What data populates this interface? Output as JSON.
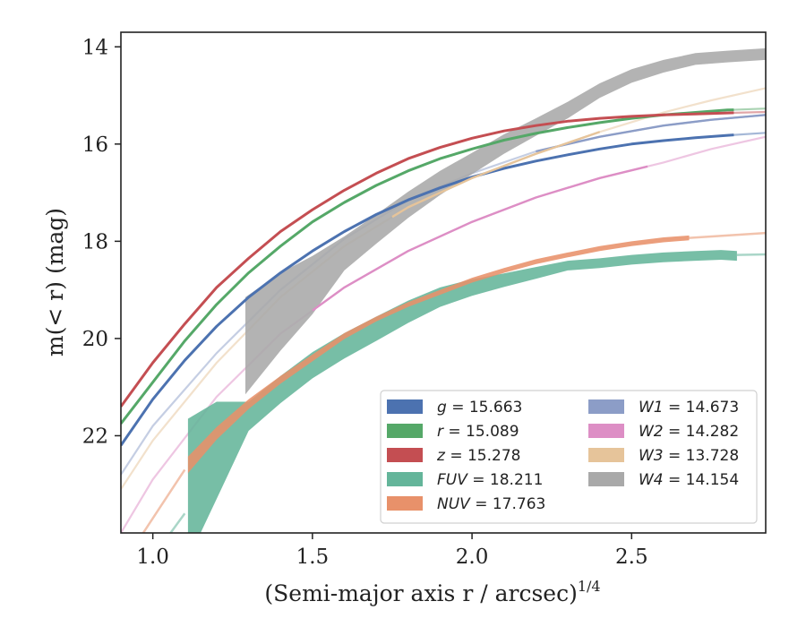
{
  "chart_data": {
    "type": "line",
    "xlabel": "(Semi-major axis r / arcsec)",
    "xlabel_exponent": "1/4",
    "ylabel": "m(< r) (mag)",
    "xlim": [
      0.9,
      2.92
    ],
    "ylim": [
      24.0,
      13.7
    ],
    "y_inverted": true,
    "x_ticks": [
      1.0,
      1.5,
      2.0,
      2.5
    ],
    "x_tick_labels": [
      "1.0",
      "1.5",
      "2.0",
      "2.5"
    ],
    "y_ticks": [
      14,
      16,
      18,
      20,
      22
    ],
    "y_tick_labels": [
      "14",
      "16",
      "18",
      "20",
      "22"
    ],
    "grid": false,
    "legend_placement": "lower-right",
    "series": [
      {
        "name": "g = 15.663",
        "band": "g",
        "value": "15.663",
        "color": "#4c72b0",
        "x": [
          0.9,
          1.0,
          1.1,
          1.2,
          1.3,
          1.4,
          1.5,
          1.6,
          1.7,
          1.8,
          1.9,
          2.0,
          2.1,
          2.2,
          2.3,
          2.4,
          2.5,
          2.6,
          2.7,
          2.8,
          2.92
        ],
        "y": [
          22.2,
          21.25,
          20.45,
          19.75,
          19.15,
          18.65,
          18.2,
          17.8,
          17.45,
          17.15,
          16.9,
          16.68,
          16.5,
          16.35,
          16.22,
          16.1,
          16.0,
          15.93,
          15.87,
          15.82,
          15.77
        ],
        "solid_until": 2.82,
        "width": 3
      },
      {
        "name": "r = 15.089",
        "band": "r",
        "value": "15.089",
        "color": "#55a868",
        "x": [
          0.9,
          1.0,
          1.1,
          1.2,
          1.3,
          1.4,
          1.5,
          1.6,
          1.7,
          1.8,
          1.9,
          2.0,
          2.1,
          2.2,
          2.3,
          2.4,
          2.5,
          2.6,
          2.7,
          2.8,
          2.92
        ],
        "y": [
          21.75,
          20.9,
          20.05,
          19.3,
          18.65,
          18.1,
          17.6,
          17.2,
          16.85,
          16.55,
          16.3,
          16.1,
          15.92,
          15.78,
          15.66,
          15.56,
          15.47,
          15.4,
          15.35,
          15.3,
          15.27
        ],
        "solid_until": 2.82,
        "width": 3
      },
      {
        "name": "z = 15.278",
        "band": "z",
        "value": "15.278",
        "color": "#c44e52",
        "x": [
          0.9,
          1.0,
          1.1,
          1.2,
          1.3,
          1.4,
          1.5,
          1.6,
          1.7,
          1.8,
          1.9,
          2.0,
          2.1,
          2.2,
          2.3,
          2.4,
          2.5,
          2.6,
          2.7,
          2.8,
          2.92
        ],
        "y": [
          21.4,
          20.5,
          19.7,
          18.95,
          18.35,
          17.8,
          17.35,
          16.95,
          16.6,
          16.3,
          16.07,
          15.88,
          15.73,
          15.62,
          15.53,
          15.47,
          15.43,
          15.4,
          15.38,
          15.36,
          15.34
        ],
        "solid_until": 2.82,
        "width": 3
      },
      {
        "name": "FUV = 18.211",
        "band": "FUV",
        "value": "18.211",
        "color": "#64b59a",
        "x": [
          1.11,
          1.2,
          1.3,
          1.4,
          1.5,
          1.6,
          1.7,
          1.8,
          1.9,
          2.0,
          2.1,
          2.2,
          2.3,
          2.4,
          2.5,
          2.6,
          2.7,
          2.78,
          2.83
        ],
        "y": [
          23.1,
          22.3,
          21.6,
          21.05,
          20.55,
          20.15,
          19.8,
          19.45,
          19.15,
          18.95,
          18.8,
          18.65,
          18.5,
          18.45,
          18.38,
          18.33,
          18.3,
          18.28,
          18.3
        ],
        "band_half": [
          1.45,
          1.0,
          0.3,
          0.28,
          0.27,
          0.26,
          0.25,
          0.23,
          0.2,
          0.17,
          0.14,
          0.12,
          0.1,
          0.1,
          0.1,
          0.1,
          0.1,
          0.1,
          0.1
        ],
        "ext_x": [
          0.9,
          1.0,
          1.1
        ],
        "ext_y": [
          25.3,
          24.5,
          23.6
        ],
        "tail_x": [
          2.83,
          2.92
        ],
        "tail_y": [
          18.28,
          18.27
        ]
      },
      {
        "name": "NUV = 17.763",
        "band": "NUV",
        "value": "17.763",
        "color": "#e8916a",
        "x": [
          1.11,
          1.2,
          1.3,
          1.4,
          1.5,
          1.6,
          1.7,
          1.8,
          1.9,
          2.0,
          2.1,
          2.2,
          2.3,
          2.4,
          2.5,
          2.6,
          2.68
        ],
        "y": [
          22.6,
          21.95,
          21.35,
          20.85,
          20.4,
          19.95,
          19.6,
          19.3,
          19.05,
          18.8,
          18.6,
          18.42,
          18.28,
          18.15,
          18.05,
          17.97,
          17.93
        ],
        "band_half": [
          0.17,
          0.13,
          0.1,
          0.08,
          0.07,
          0.06,
          0.05,
          0.05,
          0.05,
          0.05,
          0.05,
          0.05,
          0.05,
          0.05,
          0.05,
          0.05,
          0.05
        ],
        "ext_x": [
          0.9,
          1.0,
          1.1
        ],
        "ext_y": [
          24.7,
          23.7,
          22.7
        ],
        "tail_x": [
          2.68,
          2.8,
          2.92
        ],
        "tail_y": [
          17.93,
          17.88,
          17.83
        ]
      },
      {
        "name": "W1 = 14.673",
        "band": "W1",
        "value": "14.673",
        "color": "#8c9dc7",
        "x": [
          0.9,
          1.0,
          1.2,
          1.4,
          1.6,
          1.8,
          2.0,
          2.2,
          2.4,
          2.6,
          2.75,
          2.92
        ],
        "y": [
          22.8,
          21.8,
          20.3,
          19.0,
          17.95,
          17.15,
          16.6,
          16.15,
          15.85,
          15.62,
          15.5,
          15.4
        ],
        "solid_from": 2.2,
        "solid_until": 2.92
      },
      {
        "name": "W2 = 14.282",
        "band": "W2",
        "value": "14.282",
        "color": "#dd8ec5",
        "x": [
          0.9,
          1.0,
          1.2,
          1.4,
          1.6,
          1.8,
          2.0,
          2.2,
          2.4,
          2.6,
          2.75,
          2.92
        ],
        "y": [
          24.0,
          22.9,
          21.2,
          19.9,
          18.95,
          18.2,
          17.6,
          17.1,
          16.7,
          16.38,
          16.1,
          15.85
        ],
        "solid_from": 1.5,
        "solid_until": 2.55
      },
      {
        "name": "W3 = 13.728",
        "band": "W3",
        "value": "13.728",
        "color": "#e6c49a",
        "x": [
          0.9,
          1.0,
          1.2,
          1.4,
          1.6,
          1.8,
          2.0,
          2.2,
          2.4,
          2.6,
          2.75,
          2.92
        ],
        "y": [
          23.1,
          22.1,
          20.5,
          19.15,
          18.1,
          17.3,
          16.7,
          16.2,
          15.75,
          15.35,
          15.1,
          14.85
        ],
        "solid_from": 1.75,
        "solid_until": 2.4
      },
      {
        "name": "W4 = 14.154",
        "band": "W4",
        "value": "14.154",
        "color": "#a9a9a9",
        "x": [
          1.29,
          1.4,
          1.5,
          1.6,
          1.7,
          1.8,
          1.9,
          2.0,
          2.1,
          2.2,
          2.3,
          2.4,
          2.5,
          2.6,
          2.7,
          2.8,
          2.92
        ],
        "y": [
          20.15,
          19.45,
          18.9,
          18.25,
          17.75,
          17.25,
          16.8,
          16.4,
          16.0,
          15.65,
          15.3,
          14.9,
          14.6,
          14.4,
          14.25,
          14.2,
          14.15
        ],
        "band_half": [
          1.0,
          0.8,
          0.6,
          0.35,
          0.3,
          0.27,
          0.25,
          0.22,
          0.2,
          0.18,
          0.17,
          0.15,
          0.14,
          0.13,
          0.12,
          0.12,
          0.12
        ]
      }
    ]
  }
}
